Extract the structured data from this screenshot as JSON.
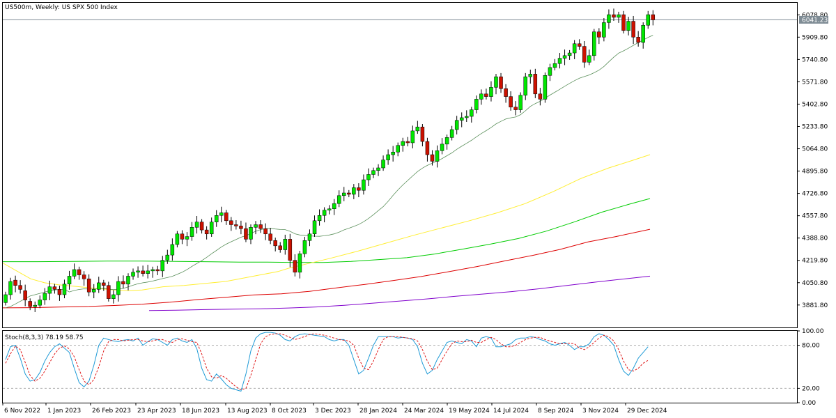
{
  "header": {
    "title": "US500m, Weekly:  US SPX 500 Index"
  },
  "stoch_label": {
    "text": "Stoch(8,3,3) 78.19 58.75"
  },
  "current_price": {
    "value": 6041.23,
    "label": "6041.23"
  },
  "chart_data": [
    {
      "type": "candlestick",
      "title": "US500m, Weekly:  US SPX 500 Index",
      "ylim": [
        3712,
        6170
      ],
      "y_ticks": [
        6078.8,
        5909.8,
        5740.8,
        5571.8,
        5402.8,
        5233.8,
        5064.8,
        4895.8,
        4726.8,
        4557.8,
        4388.8,
        4219.8,
        4050.8,
        3881.8
      ],
      "x_tick_labels": [
        "6 Nov 2022",
        "1 Jan 2023",
        "26 Feb 2023",
        "23 Apr 2023",
        "18 Jun 2023",
        "13 Aug 2023",
        "8 Oct 2023",
        "3 Dec 2023",
        "28 Jan 2024",
        "24 Mar 2024",
        "19 May 2024",
        "14 Jul 2024",
        "8 Sep 2024",
        "3 Nov 2024",
        "29 Dec 2024"
      ],
      "grid": false,
      "colors": {
        "up": "#00e600",
        "down": "#cc1100",
        "wick": "#000000",
        "ma20": "#5a8f5a",
        "ma50": "#ffee33",
        "ma100": "#00cc00",
        "ma150": "#dd0000",
        "ma200": "#8000cc"
      },
      "closes": [
        3960,
        4060,
        4030,
        4000,
        3920,
        3870,
        3880,
        3920,
        3970,
        4020,
        4000,
        3960,
        4040,
        4100,
        4150,
        4110,
        4080,
        3980,
        4000,
        4050,
        4030,
        3930,
        3960,
        4060,
        4040,
        4100,
        4130,
        4140,
        4120,
        4140,
        4150,
        4140,
        4220,
        4260,
        4340,
        4420,
        4380,
        4400,
        4470,
        4510,
        4450,
        4420,
        4510,
        4560,
        4580,
        4520,
        4490,
        4480,
        4460,
        4380,
        4470,
        4490,
        4460,
        4420,
        4370,
        4330,
        4300,
        4380,
        4220,
        4130,
        4270,
        4370,
        4420,
        4520,
        4560,
        4600,
        4610,
        4650,
        4710,
        4730,
        4720,
        4770,
        4750,
        4830,
        4870,
        4900,
        4920,
        4980,
        5020,
        5040,
        5090,
        5120,
        5110,
        5200,
        5230,
        5120,
        5020,
        4970,
        5050,
        5100,
        5150,
        5210,
        5280,
        5300,
        5310,
        5360,
        5440,
        5480,
        5460,
        5530,
        5610,
        5520,
        5460,
        5380,
        5360,
        5470,
        5610,
        5630,
        5480,
        5440,
        5620,
        5680,
        5710,
        5750,
        5770,
        5790,
        5860,
        5840,
        5720,
        5770,
        5950,
        5910,
        6020,
        6080,
        6060,
        6080,
        5960,
        6030,
        5910,
        5870,
        6000,
        6080,
        6041
      ],
      "opens": [
        3900,
        3960,
        4070,
        4030,
        3990,
        3910,
        3870,
        3880,
        3920,
        3970,
        4020,
        4000,
        3960,
        4040,
        4100,
        4150,
        4110,
        4080,
        3980,
        4000,
        4050,
        4030,
        3930,
        3960,
        4060,
        4040,
        4100,
        4130,
        4140,
        4120,
        4140,
        4150,
        4140,
        4220,
        4260,
        4340,
        4420,
        4380,
        4400,
        4470,
        4510,
        4450,
        4420,
        4510,
        4560,
        4580,
        4520,
        4490,
        4480,
        4460,
        4380,
        4470,
        4490,
        4460,
        4420,
        4370,
        4330,
        4300,
        4380,
        4220,
        4130,
        4270,
        4370,
        4420,
        4520,
        4560,
        4600,
        4610,
        4650,
        4710,
        4730,
        4720,
        4770,
        4750,
        4830,
        4870,
        4900,
        4920,
        4980,
        5020,
        5040,
        5090,
        5120,
        5110,
        5200,
        5230,
        5120,
        5020,
        4970,
        5050,
        5100,
        5150,
        5210,
        5280,
        5300,
        5310,
        5360,
        5440,
        5480,
        5460,
        5530,
        5610,
        5520,
        5460,
        5380,
        5360,
        5470,
        5610,
        5630,
        5480,
        5440,
        5620,
        5680,
        5710,
        5750,
        5770,
        5790,
        5860,
        5840,
        5720,
        5770,
        5950,
        5910,
        6020,
        6080,
        6060,
        6080,
        5960,
        6030,
        5910,
        5870,
        6000,
        6080
      ],
      "ma20_start": [
        3860,
        3870,
        3890,
        3910,
        3930,
        3950,
        3960,
        3970,
        3980,
        3990,
        3995,
        4000,
        4000
      ],
      "ma50_points": [
        [
          0,
          4200
        ],
        [
          20,
          4140
        ],
        [
          40,
          4080
        ],
        [
          60,
          4050
        ],
        [
          80,
          4035
        ],
        [
          110,
          4020
        ],
        [
          140,
          4005
        ],
        [
          160,
          3995
        ],
        [
          180,
          3990
        ],
        [
          200,
          3995
        ],
        [
          230,
          4020
        ],
        [
          260,
          4030
        ],
        [
          290,
          4045
        ],
        [
          320,
          4060
        ],
        [
          345,
          4085
        ],
        [
          370,
          4110
        ],
        [
          395,
          4135
        ],
        [
          410,
          4160
        ],
        [
          430,
          4185
        ],
        [
          470,
          4235
        ],
        [
          510,
          4290
        ],
        [
          550,
          4350
        ],
        [
          590,
          4410
        ],
        [
          630,
          4465
        ],
        [
          670,
          4520
        ],
        [
          710,
          4580
        ],
        [
          750,
          4650
        ],
        [
          790,
          4740
        ],
        [
          830,
          4840
        ],
        [
          870,
          4920
        ],
        [
          900,
          4970
        ],
        [
          929,
          5020
        ]
      ],
      "ma100_points": [
        [
          0,
          4210
        ],
        [
          50,
          4210
        ],
        [
          100,
          4212
        ],
        [
          150,
          4214
        ],
        [
          200,
          4214
        ],
        [
          250,
          4212
        ],
        [
          300,
          4209
        ],
        [
          340,
          4207
        ],
        [
          380,
          4206
        ],
        [
          420,
          4204
        ],
        [
          460,
          4204
        ],
        [
          500,
          4212
        ],
        [
          540,
          4226
        ],
        [
          580,
          4240
        ],
        [
          620,
          4268
        ],
        [
          660,
          4305
        ],
        [
          700,
          4343
        ],
        [
          740,
          4385
        ],
        [
          780,
          4441
        ],
        [
          820,
          4510
        ],
        [
          860,
          4585
        ],
        [
          900,
          4646
        ],
        [
          929,
          4688
        ]
      ],
      "ma150_points": [
        [
          0,
          3860
        ],
        [
          40,
          3862
        ],
        [
          80,
          3866
        ],
        [
          120,
          3870
        ],
        [
          160,
          3878
        ],
        [
          200,
          3888
        ],
        [
          240,
          3903
        ],
        [
          280,
          3923
        ],
        [
          320,
          3940
        ],
        [
          360,
          3958
        ],
        [
          400,
          3967
        ],
        [
          440,
          3985
        ],
        [
          480,
          4012
        ],
        [
          520,
          4038
        ],
        [
          560,
          4067
        ],
        [
          600,
          4097
        ],
        [
          640,
          4134
        ],
        [
          680,
          4172
        ],
        [
          720,
          4215
        ],
        [
          760,
          4257
        ],
        [
          800,
          4303
        ],
        [
          840,
          4359
        ],
        [
          880,
          4400
        ],
        [
          929,
          4455
        ]
      ],
      "ma200_points": [
        [
          210,
          3840
        ],
        [
          250,
          3843
        ],
        [
          290,
          3847
        ],
        [
          330,
          3850
        ],
        [
          370,
          3853
        ],
        [
          410,
          3859
        ],
        [
          450,
          3867
        ],
        [
          490,
          3879
        ],
        [
          530,
          3895
        ],
        [
          570,
          3912
        ],
        [
          610,
          3928
        ],
        [
          650,
          3948
        ],
        [
          690,
          3965
        ],
        [
          730,
          3983
        ],
        [
          770,
          4005
        ],
        [
          810,
          4030
        ],
        [
          850,
          4055
        ],
        [
          890,
          4078
        ],
        [
          929,
          4100
        ]
      ]
    },
    {
      "type": "line",
      "title": "Stoch(8,3,3) 78.19 58.75",
      "ylim": [
        0,
        100
      ],
      "y_ticks": [
        100.0,
        80.0,
        20.0,
        0.0
      ],
      "levels": [
        80,
        20
      ],
      "series": [
        {
          "values": [
            60,
            78,
            80,
            62,
            40,
            30,
            32,
            42,
            58,
            70,
            78,
            82,
            76,
            70,
            48,
            28,
            22,
            30,
            52,
            80,
            90,
            88,
            86,
            85,
            87,
            88,
            86,
            90,
            80,
            85,
            89,
            88,
            84,
            80,
            88,
            90,
            86,
            84,
            88,
            75,
            48,
            32,
            30,
            40,
            33,
            25,
            20,
            18,
            16,
            40,
            72,
            90,
            96,
            98,
            98,
            97,
            94,
            88,
            86,
            92,
            95,
            96,
            95,
            94,
            93,
            92,
            88,
            86,
            88,
            88,
            80,
            60,
            40,
            45,
            62,
            80,
            92,
            92,
            92,
            92,
            90,
            91,
            90,
            88,
            78,
            55,
            40,
            45,
            60,
            72,
            84,
            86,
            84,
            82,
            88,
            86,
            78,
            90,
            92,
            90,
            78,
            78,
            80,
            82,
            88,
            90,
            90,
            92,
            91,
            88,
            86,
            82,
            80,
            82,
            84,
            80,
            74,
            78,
            78,
            82,
            92,
            96,
            94,
            88,
            80,
            60,
            44,
            38,
            48,
            62,
            70,
            78
          ]
        },
        {
          "values": [
            55,
            68,
            79,
            74,
            56,
            38,
            30,
            34,
            44,
            56,
            68,
            76,
            79,
            75,
            64,
            46,
            30,
            25,
            32,
            50,
            72,
            85,
            88,
            88,
            86,
            87,
            88,
            88,
            86,
            85,
            86,
            88,
            88,
            85,
            84,
            88,
            89,
            87,
            85,
            84,
            68,
            48,
            36,
            34,
            38,
            34,
            28,
            22,
            18,
            20,
            38,
            60,
            82,
            92,
            95,
            96,
            96,
            94,
            91,
            88,
            90,
            92,
            95,
            96,
            95,
            94,
            92,
            90,
            88,
            87,
            86,
            80,
            62,
            48,
            46,
            58,
            74,
            88,
            92,
            92,
            92,
            91,
            90,
            89,
            86,
            74,
            58,
            46,
            48,
            60,
            72,
            82,
            86,
            85,
            85,
            87,
            84,
            84,
            88,
            91,
            88,
            82,
            78,
            78,
            80,
            84,
            88,
            90,
            91,
            91,
            88,
            86,
            84,
            82,
            82,
            83,
            82,
            76,
            74,
            78,
            84,
            90,
            94,
            92,
            86,
            74,
            58,
            46,
            44,
            48,
            55,
            59
          ]
        }
      ]
    }
  ]
}
